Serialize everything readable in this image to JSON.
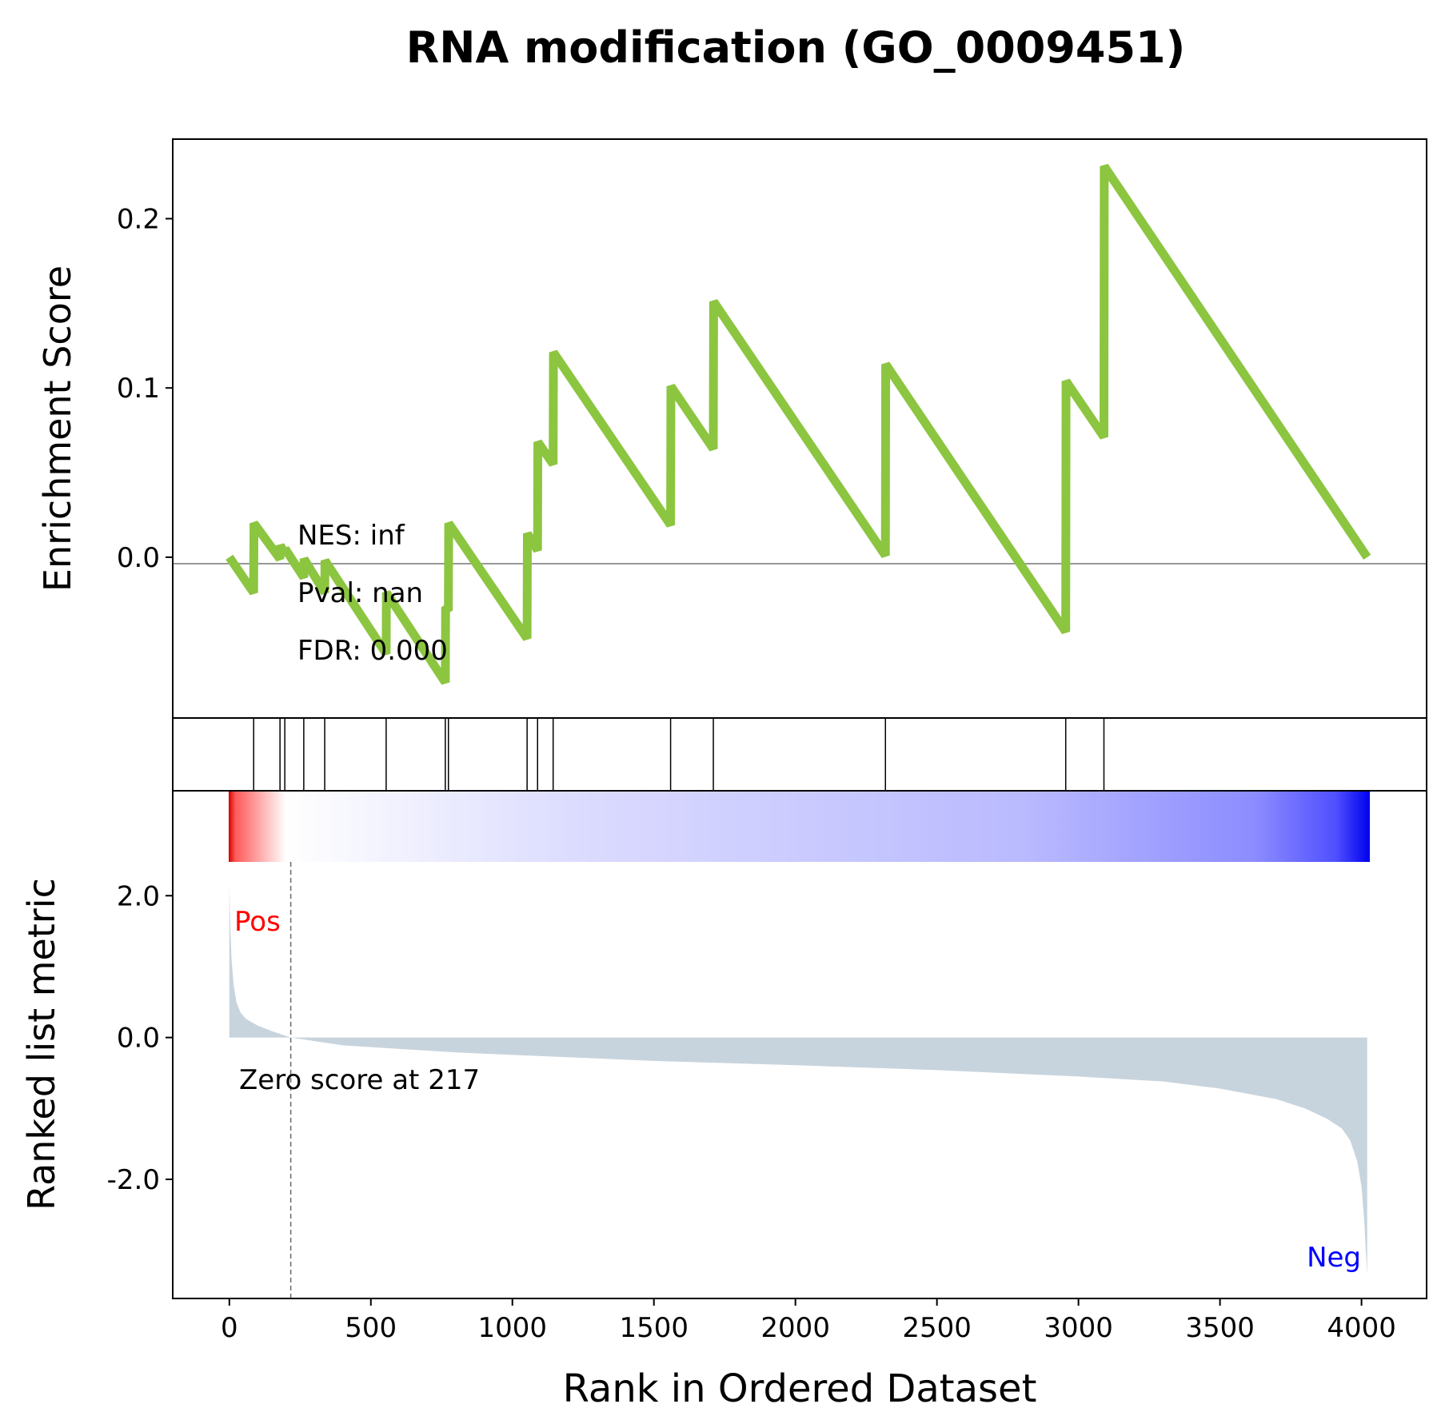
{
  "chart_data": {
    "type": "line",
    "title": "RNA modification (GO_0009451)",
    "xlabel": "Rank in Ordered Dataset",
    "xlim": [
      -200,
      4230
    ],
    "xticks": [
      0,
      500,
      1000,
      1500,
      2000,
      2500,
      3000,
      3500,
      4000
    ],
    "total_genes": 4020,
    "top_panel": {
      "ylabel": "Enrichment Score",
      "ylim": [
        -0.095,
        0.247
      ],
      "yticks": [
        0.0,
        0.1,
        0.2
      ],
      "ytick_labels": [
        "0.0",
        "0.1",
        "0.2"
      ],
      "line_color": "#8cc540",
      "series": [
        {
          "x": [
            0,
            86,
            87,
            179,
            180,
            196,
            197,
            263,
            264,
            337,
            338,
            554,
            555,
            763,
            764,
            774,
            775,
            1052,
            1053,
            1089,
            1090,
            1144,
            1145,
            1559,
            1560,
            1710,
            1711,
            2318,
            2319,
            2955,
            2956,
            3090,
            3091,
            4020
          ],
          "y": [
            0.0,
            -0.021,
            0.02,
            -0.001,
            0.007,
            0.002,
            0.005,
            -0.012,
            -0.001,
            -0.021,
            -0.002,
            -0.057,
            -0.021,
            -0.074,
            -0.031,
            -0.03,
            0.02,
            -0.048,
            0.014,
            0.004,
            0.068,
            0.055,
            0.121,
            0.019,
            0.101,
            0.064,
            0.151,
            0.001,
            0.114,
            -0.044,
            0.104,
            0.071,
            0.231,
            0.0
          ]
        }
      ],
      "annotations": [
        "NES: inf",
        "Pval: nan",
        "FDR: 0.000"
      ]
    },
    "hits_panel": {
      "hit_ranks": [
        86,
        179,
        196,
        263,
        337,
        554,
        763,
        774,
        1052,
        1089,
        1144,
        1559,
        1710,
        2318,
        2955,
        3090
      ]
    },
    "bottom_panel": {
      "ylabel": "Ranked list metric",
      "ylim": [
        -3.68,
        3.48
      ],
      "yticks": [
        -2.0,
        0.0,
        2.0
      ],
      "ytick_labels": [
        "-2.0",
        "0.0",
        "2.0"
      ],
      "fill_color": "#c8d4dd",
      "metric_x": [
        0,
        3,
        8,
        15,
        25,
        40,
        60,
        100,
        150,
        217,
        400,
        800,
        1500,
        2000,
        2500,
        3000,
        3300,
        3500,
        3700,
        3800,
        3880,
        3930,
        3960,
        3985,
        4000,
        4010,
        4015,
        4020
      ],
      "metric_y": [
        2.2,
        1.6,
        1.1,
        0.75,
        0.5,
        0.35,
        0.26,
        0.17,
        0.09,
        0.0,
        -0.11,
        -0.21,
        -0.33,
        -0.39,
        -0.46,
        -0.55,
        -0.62,
        -0.72,
        -0.87,
        -1.0,
        -1.15,
        -1.28,
        -1.45,
        -1.75,
        -2.1,
        -2.6,
        -3.0,
        -3.35
      ],
      "zero_score_rank": 217,
      "pos_label": "Pos",
      "neg_label": "Neg",
      "zero_label": "Zero score at 217"
    }
  }
}
